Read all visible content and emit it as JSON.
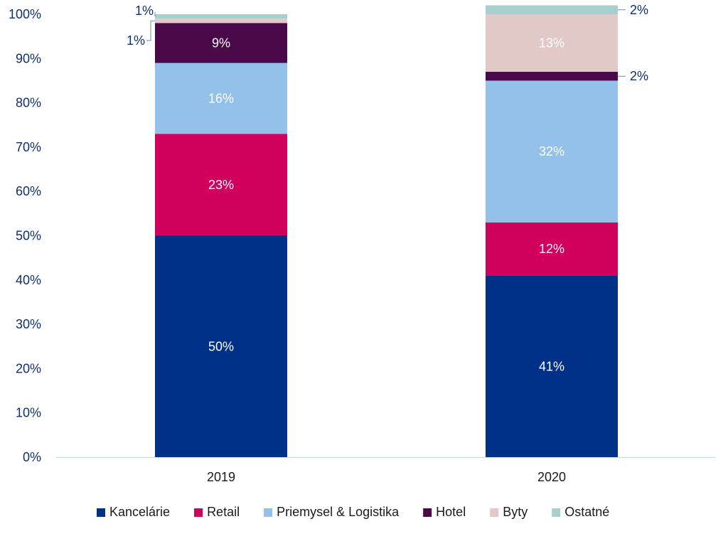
{
  "chart_data": {
    "type": "bar",
    "stacked": true,
    "normalized": true,
    "categories": [
      "2019",
      "2020"
    ],
    "series": [
      {
        "name": "Kancelárie",
        "values": [
          50,
          41
        ],
        "color": "#003087",
        "labels": [
          "50%",
          "41%"
        ]
      },
      {
        "name": "Retail",
        "values": [
          23,
          12
        ],
        "color": "#d1005d",
        "labels": [
          "23%",
          "12%"
        ]
      },
      {
        "name": "Priemysel & Logistika",
        "values": [
          16,
          32
        ],
        "color": "#94c1e9",
        "labels": [
          "16%",
          "32%"
        ]
      },
      {
        "name": "Hotel",
        "values": [
          9,
          2
        ],
        "color": "#4a0a4a",
        "labels": [
          "9%",
          "2%"
        ]
      },
      {
        "name": "Byty",
        "values": [
          1,
          13
        ],
        "color": "#e2c8c6",
        "labels": [
          "1%",
          "13%"
        ]
      },
      {
        "name": "Ostatné",
        "values": [
          1,
          2
        ],
        "color": "#a6cfce",
        "labels": [
          "1%",
          "2%"
        ]
      }
    ],
    "ylim": [
      0,
      100
    ],
    "yticks": [
      "0%",
      "10%",
      "20%",
      "30%",
      "40%",
      "50%",
      "60%",
      "70%",
      "80%",
      "90%",
      "100%"
    ],
    "grid": false,
    "legend_position": "bottom",
    "title": "",
    "xlabel": "",
    "ylabel": ""
  }
}
